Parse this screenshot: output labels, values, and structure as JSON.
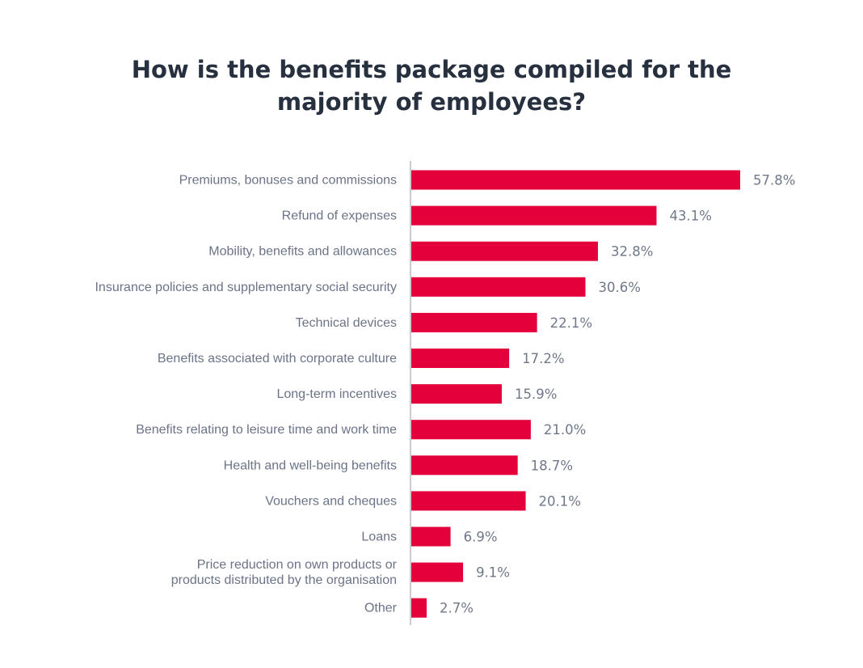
{
  "chart_data": {
    "type": "bar",
    "orientation": "horizontal",
    "title_lines": [
      "How is the benefits package compiled for the",
      "majority of employees?"
    ],
    "categories": [
      [
        "Premiums, bonuses and commissions"
      ],
      [
        "Refund of expenses"
      ],
      [
        "Mobility, benefits and allowances"
      ],
      [
        "Insurance policies and supplementary social security"
      ],
      [
        "Technical devices"
      ],
      [
        "Benefits associated with corporate culture"
      ],
      [
        "Long-term incentives"
      ],
      [
        "Benefits relating to leisure time and work time"
      ],
      [
        "Health and well-being benefits"
      ],
      [
        "Vouchers and cheques"
      ],
      [
        "Loans"
      ],
      [
        "Price reduction on own products or",
        "products distributed by the organisation"
      ],
      [
        "Other"
      ]
    ],
    "values": [
      57.8,
      43.1,
      32.8,
      30.6,
      22.1,
      17.2,
      15.9,
      21.0,
      18.7,
      20.1,
      6.9,
      9.1,
      2.7
    ],
    "value_labels": [
      "57.8%",
      "43.1%",
      "32.8%",
      "30.6%",
      "22.1%",
      "17.2%",
      "15.9%",
      "21.0%",
      "18.7%",
      "20.1%",
      "6.9%",
      "9.1%",
      "2.7%"
    ],
    "xlim": [
      0,
      57.8
    ],
    "bar_color": "#e3003b",
    "axis_color": "#b8bcc4",
    "grid": false,
    "legend": "none"
  }
}
